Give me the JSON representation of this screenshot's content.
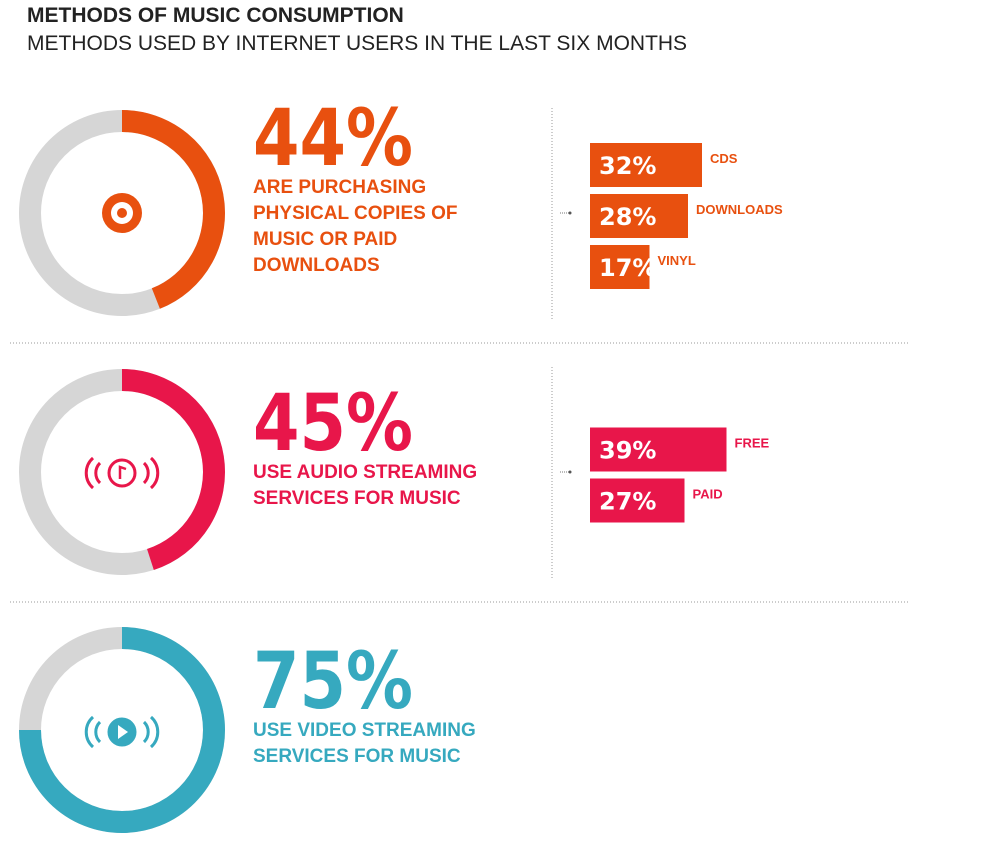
{
  "title": "METHODS OF MUSIC CONSUMPTION",
  "subtitle": "METHODS USED BY INTERNET USERS IN THE LAST SIX MONTHS",
  "chart_data": [
    {
      "type": "donut",
      "value": 44,
      "value_label": "44%",
      "color": "#e8500f",
      "description_lines": [
        "ARE PURCHASING",
        "PHYSICAL COPIES OF",
        "MUSIC OR PAID",
        "DOWNLOADS"
      ],
      "breakdown": {
        "type": "bar",
        "categories": [
          "CDS",
          "DOWNLOADS",
          "VINYL"
        ],
        "values": [
          32,
          28,
          17
        ],
        "value_labels": [
          "32%",
          "28%",
          "17%"
        ],
        "xlim": [
          0,
          100
        ]
      }
    },
    {
      "type": "donut",
      "value": 45,
      "value_label": "45%",
      "color": "#e8164a",
      "description_lines": [
        "USE AUDIO STREAMING",
        "SERVICES FOR MUSIC"
      ],
      "breakdown": {
        "type": "bar",
        "categories": [
          "FREE",
          "PAID"
        ],
        "values": [
          39,
          27
        ],
        "value_labels": [
          "39%",
          "27%"
        ],
        "xlim": [
          0,
          100
        ]
      }
    },
    {
      "type": "donut",
      "value": 75,
      "value_label": "75%",
      "color": "#36a9bf",
      "description_lines": [
        "USE VIDEO STREAMING",
        "SERVICES FOR MUSIC"
      ]
    }
  ]
}
